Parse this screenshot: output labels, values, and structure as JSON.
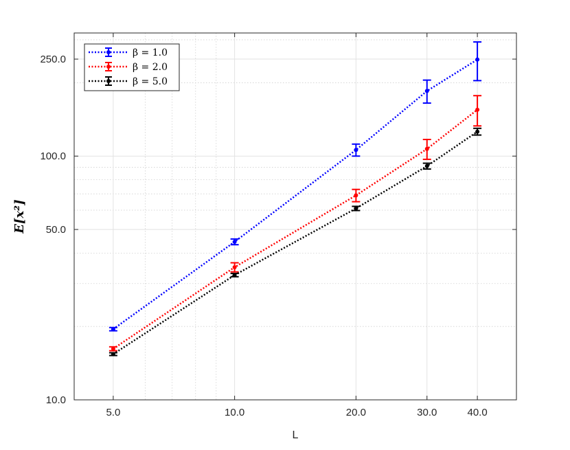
{
  "chart_data": {
    "type": "line",
    "scale": {
      "x": "log",
      "y": "log"
    },
    "xlabel": "L",
    "ylabel": "E[x²]",
    "xlim": [
      4.0,
      50.0
    ],
    "ylim": [
      10.0,
      320.0
    ],
    "x_ticks": [
      5.0,
      10.0,
      20.0,
      30.0,
      40.0
    ],
    "x_tick_labels": [
      "5.0",
      "10.0",
      "20.0",
      "30.0",
      "40.0"
    ],
    "y_ticks": [
      10.0,
      50.0,
      100.0,
      250.0
    ],
    "y_tick_labels": [
      "10.0",
      "50.0",
      "100.0",
      "250.0"
    ],
    "grid": true,
    "legend_position": "top-left",
    "x": [
      5.0,
      10.0,
      20.0,
      30.0,
      40.0
    ],
    "series": [
      {
        "name": "β = 1.0",
        "color": "#0000ff",
        "values": [
          19.5,
          44.5,
          106.0,
          185.0,
          249.0
        ],
        "err_low": [
          0.3,
          1.2,
          6.0,
          20.0,
          45.0
        ],
        "err_high": [
          0.3,
          1.2,
          6.0,
          20.0,
          45.0
        ]
      },
      {
        "name": "β = 2.0",
        "color": "#ff0000",
        "values": [
          16.2,
          35.0,
          69.0,
          107.0,
          155.0
        ],
        "err_low": [
          0.3,
          1.5,
          4.0,
          10.0,
          22.0
        ],
        "err_high": [
          0.3,
          1.5,
          4.0,
          10.0,
          22.0
        ]
      },
      {
        "name": "β = 5.0",
        "color": "#000000",
        "values": [
          15.4,
          32.5,
          61.0,
          91.0,
          126.0
        ],
        "err_low": [
          0.2,
          0.5,
          1.2,
          2.5,
          4.0
        ],
        "err_high": [
          0.2,
          0.5,
          1.2,
          2.5,
          4.0
        ]
      }
    ]
  }
}
